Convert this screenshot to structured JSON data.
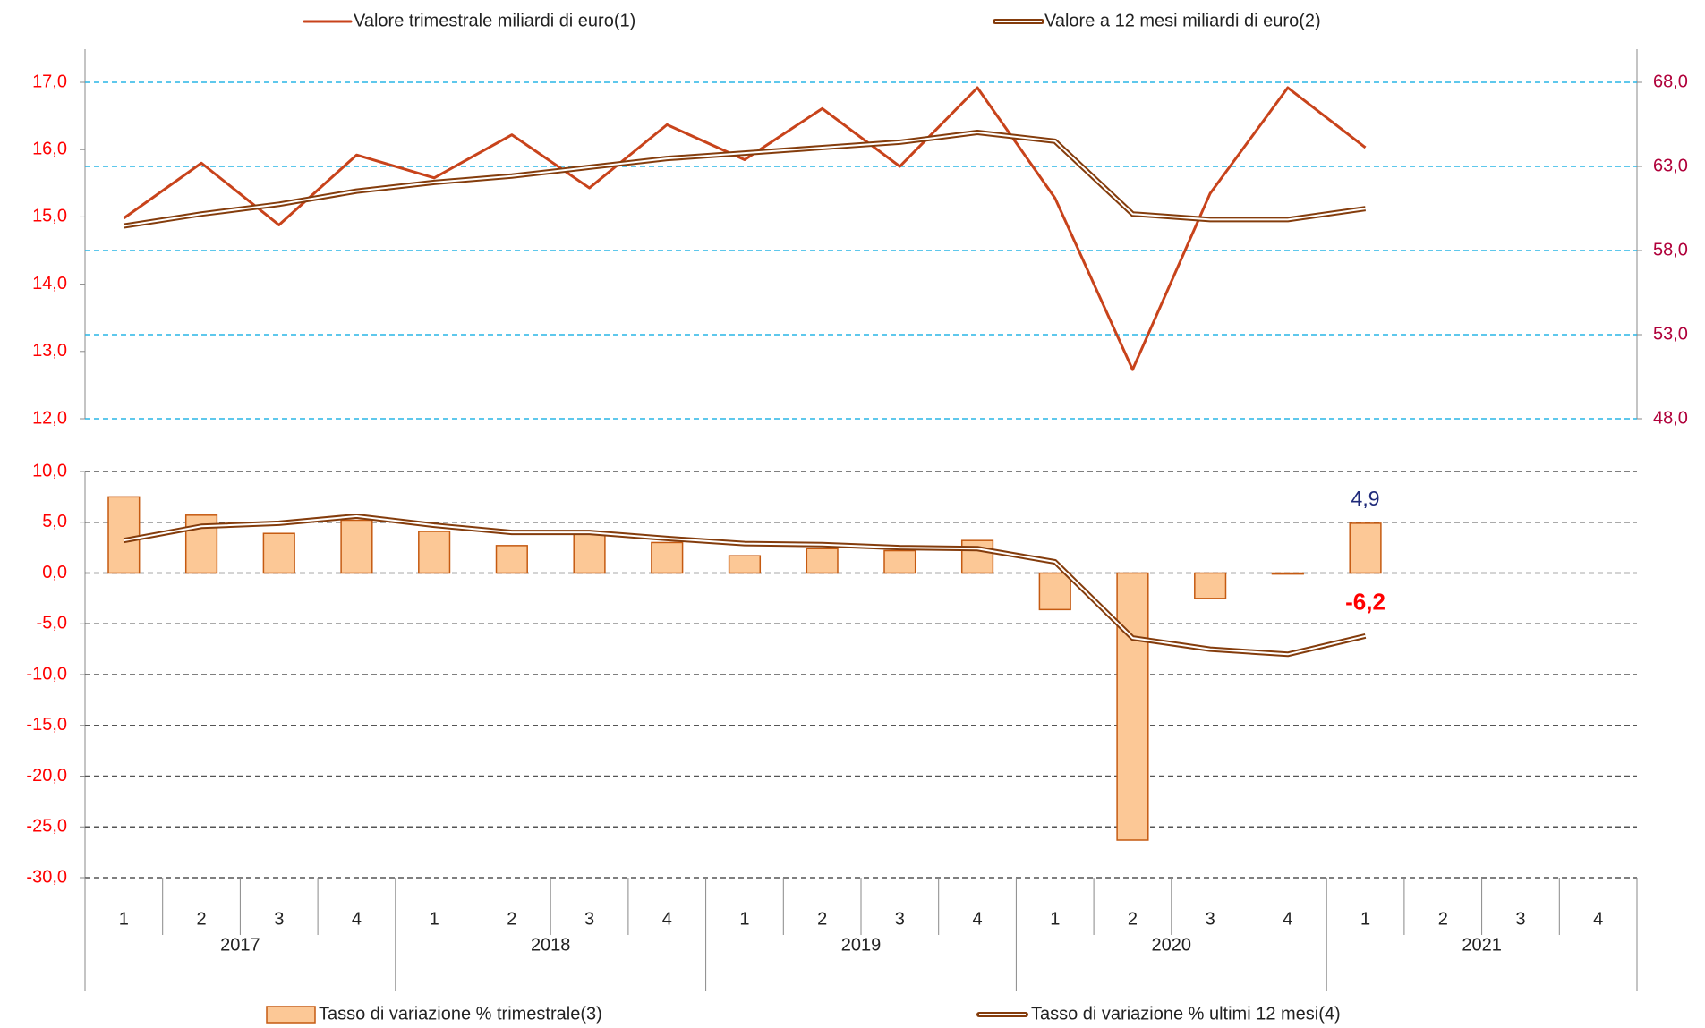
{
  "chart_data": [
    {
      "type": "line",
      "ylim": [
        12,
        17
      ],
      "yticks": [
        {
          "value": 12,
          "label": "12,0"
        },
        {
          "value": 13,
          "label": "13,0"
        },
        {
          "value": 14,
          "label": "14,0"
        },
        {
          "value": 15,
          "label": "15,0"
        },
        {
          "value": 16,
          "label": "16,0"
        },
        {
          "value": 17,
          "label": "17,0"
        }
      ],
      "y2lim": [
        48,
        68
      ],
      "y2ticks": [
        {
          "value": 48,
          "label": "48,0"
        },
        {
          "value": 53,
          "label": "53,0"
        },
        {
          "value": 58,
          "label": "58,0"
        },
        {
          "value": 63,
          "label": "63,0"
        },
        {
          "value": 68,
          "label": "68,0"
        }
      ],
      "grid": true,
      "series": [
        {
          "name": "Valore trimestrale miliardi di euro(1)",
          "color": "#c8431b",
          "values": [
            14.98,
            15.8,
            14.88,
            15.92,
            15.58,
            16.22,
            15.43,
            16.37,
            15.85,
            16.61,
            15.75,
            16.92,
            15.28,
            12.73,
            15.35,
            16.92,
            16.03,
            null,
            null,
            null
          ]
        },
        {
          "name": "Valore a 12 mesi miliardi di euro(2)",
          "color": "#843c0c",
          "axis": "y2",
          "style": "double",
          "values": [
            59.46,
            60.17,
            60.75,
            61.53,
            62.05,
            62.43,
            62.95,
            63.47,
            63.79,
            64.12,
            64.44,
            65.02,
            64.5,
            60.17,
            59.84,
            59.84,
            60.49,
            null,
            null,
            null
          ]
        }
      ]
    },
    {
      "type": "combo",
      "categories": [
        "1",
        "2",
        "3",
        "4",
        "1",
        "2",
        "3",
        "4",
        "1",
        "2",
        "3",
        "4",
        "1",
        "2",
        "3",
        "4",
        "1",
        "2",
        "3",
        "4"
      ],
      "groups": [
        "2017",
        "2018",
        "2019",
        "2020",
        "2021"
      ],
      "ylim": [
        -30,
        10
      ],
      "yticks": [
        {
          "value": -30,
          "label": "-30,0"
        },
        {
          "value": -25,
          "label": "-25,0"
        },
        {
          "value": -20,
          "label": "-20,0"
        },
        {
          "value": -15,
          "label": "-15,0"
        },
        {
          "value": -10,
          "label": "-10,0"
        },
        {
          "value": -5,
          "label": "-5,0"
        },
        {
          "value": 0,
          "label": "0,0"
        },
        {
          "value": 5,
          "label": "5,0"
        },
        {
          "value": 10,
          "label": "10,0"
        }
      ],
      "grid": true,
      "series": [
        {
          "name": "Tasso di variazione % trimestrale(3)",
          "type": "bar",
          "color": "#fcc896",
          "edge": "#c55a11",
          "values": [
            7.5,
            5.7,
            3.9,
            5.2,
            4.1,
            2.7,
            3.9,
            3.0,
            1.7,
            2.4,
            2.2,
            3.2,
            -3.6,
            -26.3,
            -2.5,
            -0.1,
            4.9,
            null,
            null,
            null
          ],
          "value_labels": [
            null,
            null,
            null,
            null,
            null,
            null,
            null,
            null,
            null,
            null,
            null,
            null,
            null,
            null,
            null,
            null,
            "4,9",
            null,
            null,
            null
          ],
          "label_color": "#1f2a7a"
        },
        {
          "name": "Tasso di variazione % ultimi 12 mesi(4)",
          "type": "line",
          "style": "double",
          "color": "#843c0c",
          "values": [
            3.2,
            4.6,
            4.9,
            5.6,
            4.7,
            4.0,
            4.0,
            3.4,
            2.9,
            2.8,
            2.5,
            2.4,
            1.1,
            -6.4,
            -7.5,
            -8.0,
            -6.2,
            null,
            null,
            null
          ],
          "value_labels": [
            null,
            null,
            null,
            null,
            null,
            null,
            null,
            null,
            null,
            null,
            null,
            null,
            null,
            null,
            null,
            null,
            "-6,2",
            null,
            null,
            null
          ],
          "label_color": "#ff0000"
        }
      ]
    }
  ]
}
